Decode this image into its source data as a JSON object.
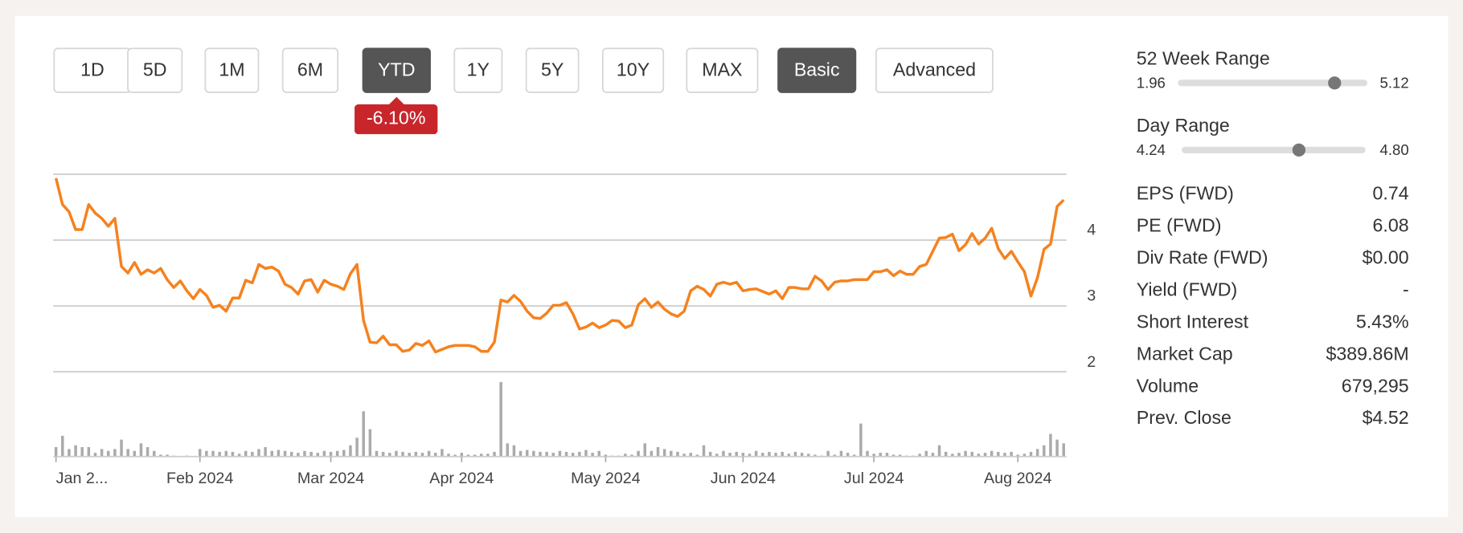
{
  "buttons": [
    {
      "label": "1D",
      "active": false
    },
    {
      "label": "5D",
      "active": false
    },
    {
      "label": "1M",
      "active": false
    },
    {
      "label": "6M",
      "active": false
    },
    {
      "label": "YTD",
      "active": true
    },
    {
      "label": "1Y",
      "active": false
    },
    {
      "label": "5Y",
      "active": false
    },
    {
      "label": "10Y",
      "active": false
    },
    {
      "label": "MAX",
      "active": false
    },
    {
      "label": "Basic",
      "active": true
    },
    {
      "label": "Advanced",
      "active": false
    }
  ],
  "change_badge": "-6.10%",
  "chart_data": {
    "type": "line",
    "color": "#f5821f",
    "categories": [
      "Jan 2...",
      null,
      null,
      null,
      null,
      null,
      null,
      null,
      null,
      null,
      null,
      null,
      null,
      null,
      null,
      null,
      null,
      null,
      null,
      null,
      null,
      null,
      "Feb 2024",
      null,
      null,
      null,
      null,
      null,
      null,
      null,
      null,
      null,
      null,
      null,
      null,
      null,
      null,
      null,
      null,
      null,
      null,
      null,
      "Mar 2024",
      null,
      null,
      null,
      null,
      null,
      null,
      null,
      null,
      null,
      null,
      null,
      null,
      null,
      null,
      null,
      null,
      null,
      null,
      null,
      "Apr 2024",
      null,
      null,
      null,
      null,
      null,
      null,
      null,
      null,
      null,
      null,
      null,
      null,
      null,
      null,
      null,
      null,
      null,
      null,
      null,
      null,
      null,
      "May 2024",
      null,
      null,
      null,
      null,
      null,
      null,
      null,
      null,
      null,
      null,
      null,
      null,
      null,
      null,
      null,
      null,
      null,
      null,
      null,
      null,
      "Jun 2024",
      null,
      null,
      null,
      null,
      null,
      null,
      null,
      null,
      null,
      null,
      null,
      null,
      null,
      null,
      null,
      null,
      null,
      null,
      null,
      "Jul 2024",
      null,
      null,
      null,
      null,
      null,
      null,
      null,
      null,
      null,
      null,
      null,
      null,
      null,
      null,
      null,
      null,
      null,
      null,
      null,
      null,
      null,
      "Aug 2024",
      null,
      null,
      null,
      null,
      null,
      null,
      null
    ],
    "values": [
      4.94,
      4.54,
      4.43,
      4.16,
      4.16,
      4.54,
      4.41,
      4.33,
      4.21,
      4.33,
      3.6,
      3.5,
      3.66,
      3.48,
      3.55,
      3.5,
      3.57,
      3.4,
      3.28,
      3.38,
      3.23,
      3.11,
      3.25,
      3.16,
      2.98,
      3.01,
      2.92,
      3.12,
      3.12,
      3.39,
      3.35,
      3.63,
      3.57,
      3.59,
      3.53,
      3.33,
      3.28,
      3.18,
      3.38,
      3.4,
      3.21,
      3.39,
      3.33,
      3.3,
      3.25,
      3.49,
      3.63,
      2.78,
      2.45,
      2.44,
      2.54,
      2.41,
      2.41,
      2.31,
      2.33,
      2.43,
      2.4,
      2.47,
      2.3,
      2.34,
      2.38,
      2.4,
      2.4,
      2.4,
      2.38,
      2.31,
      2.31,
      2.45,
      3.09,
      3.06,
      3.16,
      3.07,
      2.92,
      2.82,
      2.81,
      2.89,
      3.01,
      3.01,
      3.05,
      2.88,
      2.65,
      2.68,
      2.74,
      2.67,
      2.71,
      2.78,
      2.77,
      2.67,
      2.71,
      3.02,
      3.11,
      2.98,
      3.06,
      2.95,
      2.88,
      2.84,
      2.92,
      3.23,
      3.3,
      3.25,
      3.15,
      3.33,
      3.36,
      3.33,
      3.36,
      3.23,
      3.25,
      3.26,
      3.22,
      3.18,
      3.23,
      3.11,
      3.28,
      3.28,
      3.26,
      3.26,
      3.45,
      3.38,
      3.25,
      3.36,
      3.38,
      3.38,
      3.4,
      3.4,
      3.4,
      3.52,
      3.52,
      3.55,
      3.46,
      3.53,
      3.48,
      3.48,
      3.6,
      3.63,
      3.83,
      4.03,
      4.04,
      4.09,
      3.84,
      3.93,
      4.1,
      3.94,
      4.03,
      4.18,
      3.87,
      3.72,
      3.83,
      3.67,
      3.52,
      3.15,
      3.43,
      3.86,
      3.94,
      4.51,
      4.61
    ],
    "volume": {
      "color": "#aaaaaa",
      "lim": [
        0,
        80
      ],
      "values": [
        10,
        22,
        8,
        12,
        10,
        10,
        4,
        8,
        6,
        8,
        18,
        8,
        6,
        14,
        10,
        6,
        2,
        2,
        1,
        0,
        1,
        0,
        8,
        6,
        6,
        5,
        6,
        5,
        3,
        6,
        5,
        8,
        10,
        6,
        7,
        6,
        5,
        4,
        6,
        5,
        4,
        6,
        5,
        6,
        7,
        12,
        20,
        48,
        29,
        6,
        5,
        4,
        6,
        5,
        4,
        5,
        4,
        6,
        4,
        8,
        3,
        2,
        4,
        2,
        2,
        3,
        3,
        5,
        79,
        14,
        12,
        6,
        7,
        6,
        5,
        5,
        4,
        6,
        5,
        4,
        5,
        7,
        4,
        6,
        2,
        1,
        1,
        3,
        2,
        6,
        14,
        6,
        10,
        8,
        6,
        5,
        3,
        4,
        2,
        12,
        5,
        3,
        6,
        4,
        5,
        4,
        3,
        6,
        4,
        5,
        4,
        5,
        3,
        5,
        4,
        3,
        2,
        1,
        6,
        2,
        6,
        4,
        2,
        35,
        6,
        3,
        4,
        4,
        2,
        2,
        1,
        1,
        3,
        6,
        4,
        12,
        5,
        3,
        4,
        6,
        5,
        3,
        4,
        6,
        5,
        4,
        5,
        2,
        3,
        5,
        8,
        12,
        24,
        18,
        14
      ]
    },
    "ylim": [
      2,
      5
    ],
    "yticks": [
      2,
      3,
      4
    ],
    "grid": true
  },
  "ranges": [
    {
      "label": "52 Week Range",
      "low": 1.96,
      "high": 5.12,
      "marker": 4.61
    },
    {
      "label": "Day Range",
      "low": 4.24,
      "high": {
        "value": 4.8,
        "label": "4.80"
      },
      "marker": 4.6
    }
  ],
  "stats": [
    {
      "label": "EPS (FWD)",
      "value": "0.74"
    },
    {
      "label": "PE (FWD)",
      "value": "6.08"
    },
    {
      "label": "Div Rate (FWD)",
      "value": "$0.00"
    },
    {
      "label": "Yield (FWD)",
      "value": "-"
    },
    {
      "label": "Short Interest",
      "value": "5.43%"
    },
    {
      "label": "Market Cap",
      "value": "$389.86M"
    },
    {
      "label": "Volume",
      "value": "679,295"
    },
    {
      "label": "Prev. Close",
      "value": "$4.52"
    }
  ]
}
